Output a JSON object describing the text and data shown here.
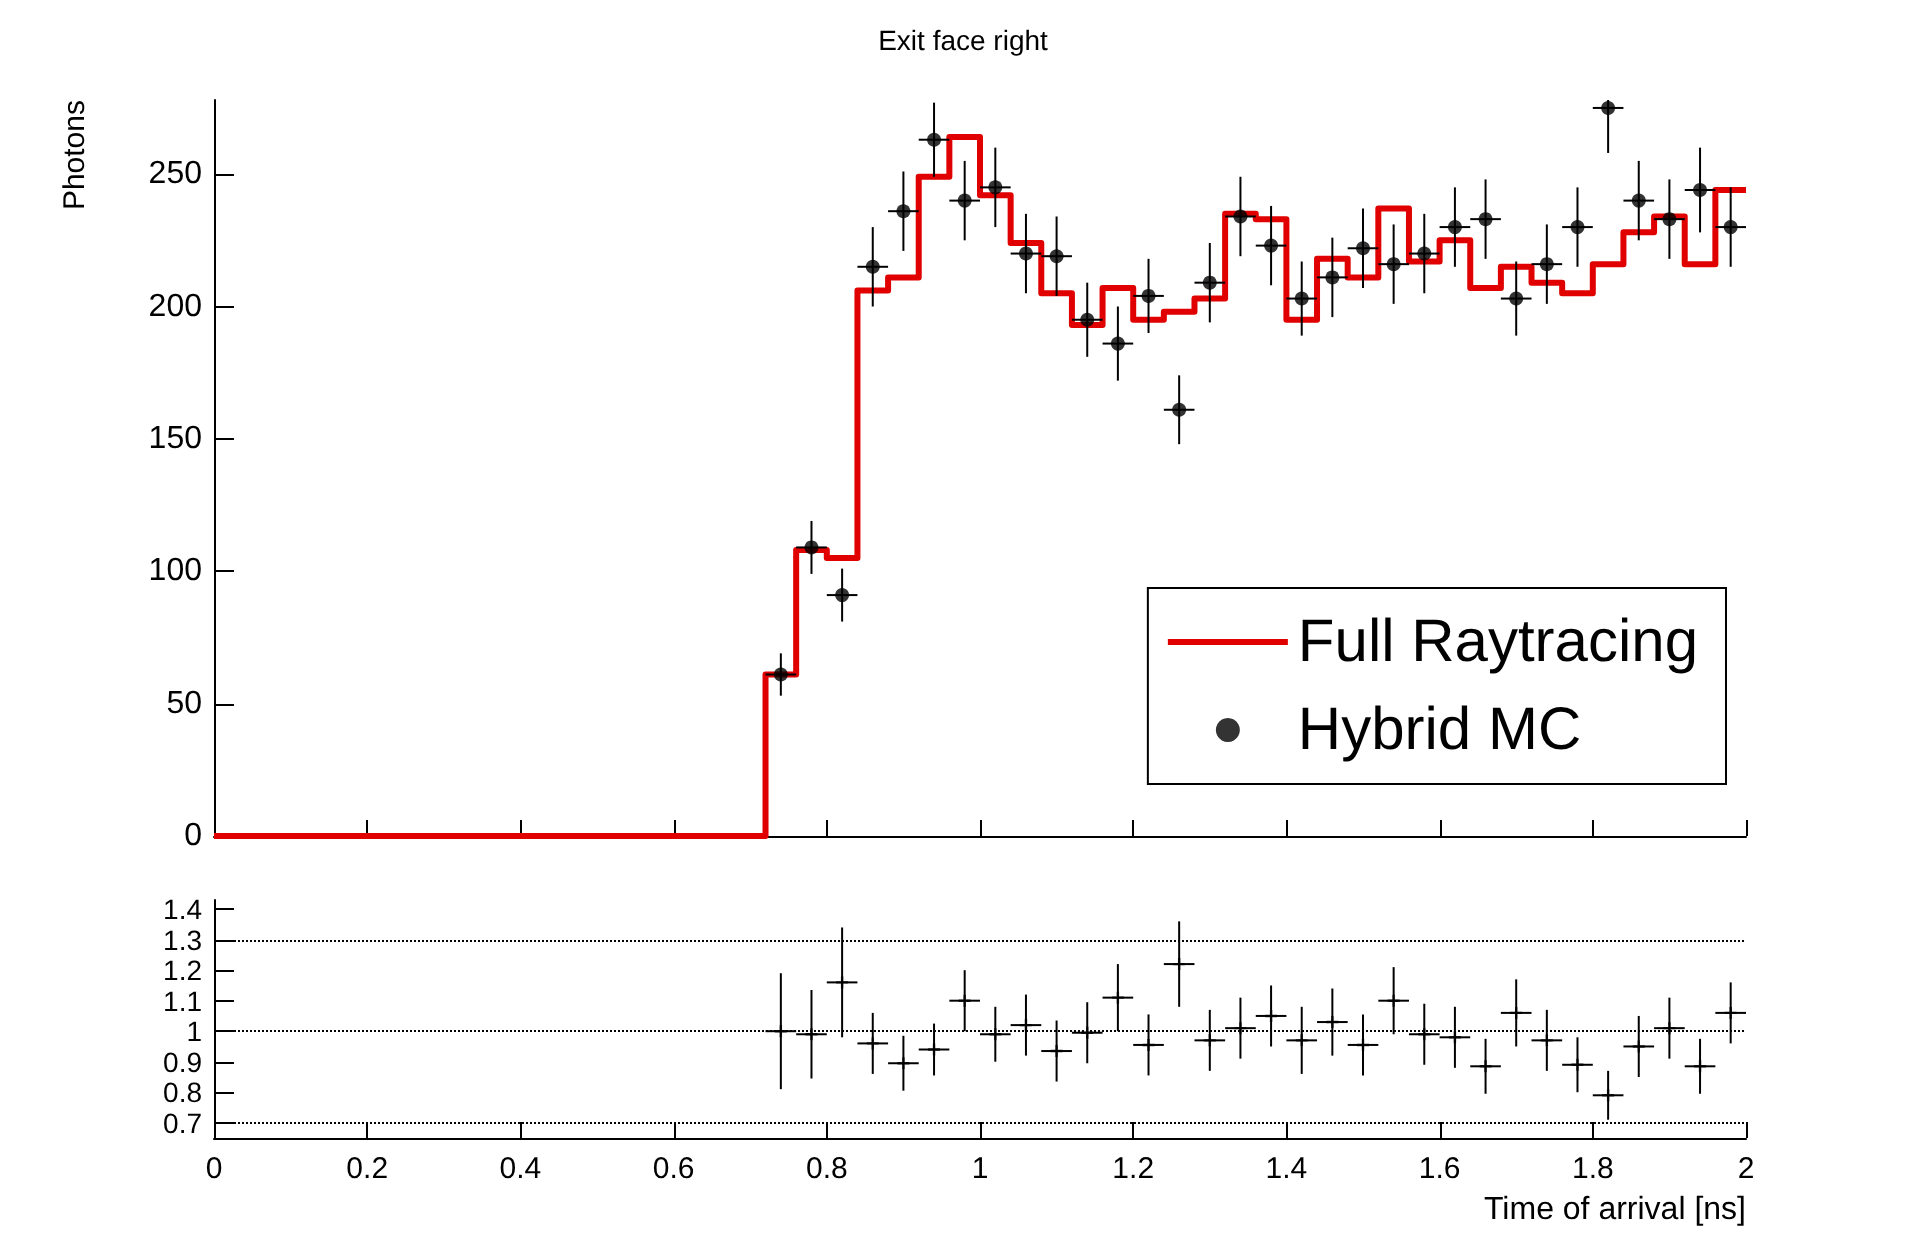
{
  "chart_data": [
    {
      "type": "histogram",
      "title": "Exit face right",
      "ylabel": "Photons",
      "xlim": [
        0,
        2
      ],
      "xticks": [
        0,
        0.2,
        0.4,
        0.6,
        0.8,
        1,
        1.2,
        1.4,
        1.6,
        1.8,
        2
      ],
      "ylim": [
        0,
        278
      ],
      "yticks": [
        0,
        50,
        100,
        150,
        200,
        250
      ],
      "tick_labels": "y",
      "legend": "bottom right",
      "grid": false,
      "series": [
        {
          "name": "Full Raytracing",
          "color": "#e00000",
          "line_style": "solid",
          "bins": [
            0,
            0.04,
            0.08,
            0.12,
            0.16,
            0.2,
            0.24,
            0.28,
            0.32,
            0.36,
            0.4,
            0.44,
            0.48,
            0.52,
            0.56,
            0.6,
            0.64,
            0.68,
            0.72,
            0.76,
            0.8,
            0.84,
            0.88,
            0.92,
            0.96,
            1,
            1.04,
            1.08,
            1.12,
            1.16,
            1.2,
            1.24,
            1.28,
            1.32,
            1.36,
            1.4,
            1.44,
            1.48,
            1.52,
            1.56,
            1.6,
            1.64,
            1.68,
            1.72,
            1.76,
            1.8,
            1.84,
            1.88,
            1.92,
            1.96,
            2
          ],
          "values": [
            0,
            0,
            0,
            0,
            0,
            0,
            0,
            0,
            0,
            0,
            0,
            0,
            0,
            0,
            0,
            0,
            0,
            0,
            61,
            108,
            105,
            206,
            211,
            249,
            264,
            242,
            224,
            205,
            193,
            207,
            195,
            198,
            203,
            235,
            233,
            195,
            218,
            211,
            237,
            217,
            225,
            207,
            215,
            209,
            205,
            216,
            228,
            234,
            216,
            244
          ]
        },
        {
          "name": "Hybrid MC",
          "type": "scatter",
          "color": "#000000",
          "marker": "circle",
          "x": [
            0.74,
            0.78,
            0.82,
            0.86,
            0.9,
            0.94,
            0.98,
            1.02,
            1.06,
            1.1,
            1.14,
            1.18,
            1.22,
            1.26,
            1.3,
            1.34,
            1.38,
            1.42,
            1.46,
            1.5,
            1.54,
            1.58,
            1.62,
            1.66,
            1.7,
            1.74,
            1.78,
            1.82,
            1.86,
            1.9,
            1.94,
            1.98
          ],
          "values": [
            61,
            109,
            91,
            215,
            236,
            263,
            240,
            245,
            220,
            219,
            195,
            186,
            204,
            161,
            209,
            234,
            223,
            203,
            211,
            222,
            216,
            220,
            230,
            233,
            203,
            216,
            230,
            275,
            240,
            233,
            244,
            230
          ],
          "errors": [
            8,
            10,
            10,
            15,
            15,
            14,
            15,
            15,
            15,
            15,
            14,
            14,
            14,
            13,
            15,
            15,
            15,
            14,
            15,
            15,
            15,
            15,
            15,
            15,
            14,
            15,
            15,
            [
              258,
              278
            ],
            15,
            15,
            16,
            15
          ],
          "xerrors": [
            0.02,
            0.02,
            0.02,
            0.02,
            0.02,
            0.02,
            0.02,
            0.02,
            0.02,
            0.02,
            0.02,
            0.02,
            0.02,
            0.02,
            0.02,
            0.02,
            0.02,
            0.02,
            0.02,
            0.02,
            0.02,
            0.02,
            0.02,
            0.02,
            0.02,
            0.02,
            0.02,
            0.02,
            0.02,
            0.02,
            0.02,
            0.02
          ]
        }
      ]
    },
    {
      "type": "scatter",
      "xlabel": "Time of arrival [ns]",
      "xlim": [
        0,
        2
      ],
      "xticks": [
        0,
        0.2,
        0.4,
        0.6,
        0.8,
        1,
        1.2,
        1.4,
        1.6,
        1.8,
        2
      ],
      "ylim": [
        0.65,
        1.43
      ],
      "yticks": [
        0.7,
        0.8,
        0.9,
        1,
        1.1,
        1.2,
        1.3,
        1.4
      ],
      "grid": false,
      "legend": false,
      "ref_lines": [
        {
          "axis": "y",
          "value": 0.7,
          "line_style": "dotted",
          "color": "#000000"
        },
        {
          "axis": "y",
          "value": 1,
          "line_style": "dotted",
          "color": "#000000"
        },
        {
          "axis": "y",
          "value": 1.3,
          "line_style": "dotted",
          "color": "#000000"
        }
      ],
      "series": [
        {
          "color": "#000000",
          "marker": "cross",
          "x": [
            0.74,
            0.78,
            0.82,
            0.86,
            0.9,
            0.94,
            0.98,
            1.02,
            1.06,
            1.1,
            1.14,
            1.18,
            1.22,
            1.26,
            1.3,
            1.34,
            1.38,
            1.42,
            1.46,
            1.5,
            1.54,
            1.58,
            1.62,
            1.66,
            1.7,
            1.74,
            1.78,
            1.82,
            1.86,
            1.9,
            1.94,
            1.98
          ],
          "values": [
            1,
            0.99,
            1.16,
            0.96,
            0.895,
            0.94,
            1.1,
            0.99,
            1.02,
            0.935,
            0.995,
            1.11,
            0.955,
            1.22,
            0.97,
            1.01,
            1.05,
            0.97,
            1.03,
            0.955,
            1.1,
            0.99,
            0.98,
            0.885,
            1.06,
            0.97,
            0.89,
            0.79,
            0.95,
            1.01,
            0.885,
            1.06
          ],
          "errors": [
            0.19,
            0.145,
            0.18,
            0.1,
            0.09,
            0.085,
            0.1,
            0.09,
            0.1,
            0.1,
            0.1,
            0.11,
            0.1,
            0.14,
            0.1,
            0.1,
            0.1,
            0.11,
            0.11,
            0.1,
            0.11,
            0.1,
            0.1,
            0.09,
            0.11,
            0.1,
            0.09,
            0.08,
            0.1,
            0.1,
            0.09,
            0.1
          ],
          "xerrors": [
            0.02,
            0.02,
            0.02,
            0.02,
            0.02,
            0.02,
            0.02,
            0.02,
            0.02,
            0.02,
            0.02,
            0.02,
            0.02,
            0.02,
            0.02,
            0.02,
            0.02,
            0.02,
            0.02,
            0.02,
            0.02,
            0.02,
            0.02,
            0.02,
            0.02,
            0.02,
            0.02,
            0.02,
            0.02,
            0.02,
            0.02,
            0.02
          ]
        }
      ]
    }
  ]
}
